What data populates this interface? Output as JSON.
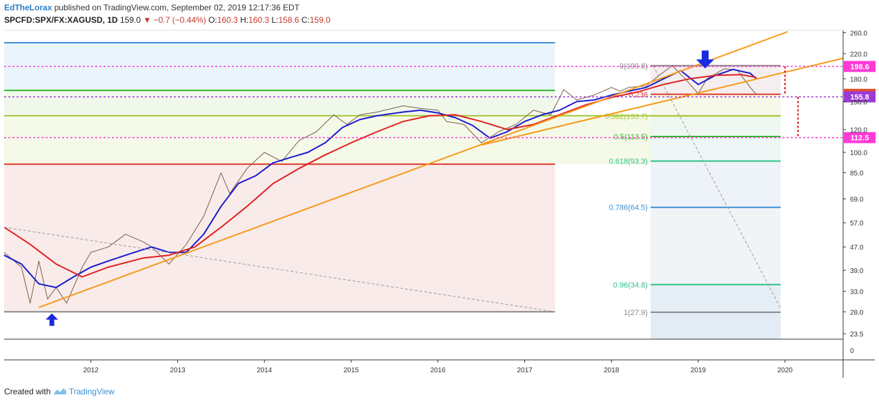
{
  "header": {
    "author": "EdTheLorax",
    "published_text": "published on TradingView.com, September 02, 2019 12:17:36 EDT"
  },
  "ticker": {
    "symbol": "SPCFD:SPX/FX:XAGUSD, 1D",
    "last": "159.0",
    "change": "▼ −0.7 (−0.44%)",
    "open_label": "O:",
    "open": "160.3",
    "high_label": "H:",
    "high": "160.3",
    "low_label": "L:",
    "low": "158.6",
    "close_label": "C:",
    "close": "159.0"
  },
  "footer": {
    "created_with": "Created with",
    "brand": "TradingView"
  },
  "chart_data": {
    "type": "line",
    "title": "",
    "xlabel": "",
    "ylabel": "",
    "scale": "log",
    "ylim": [
      22.5,
      265
    ],
    "xlim": [
      2011.0,
      2020.67
    ],
    "x_ticks": [
      2012,
      2013,
      2014,
      2015,
      2016,
      2017,
      2018,
      2019,
      2020
    ],
    "x_tick_labels": [
      "2012",
      "2013",
      "2014",
      "2015",
      "2016",
      "2017",
      "2018",
      "2019",
      "2020"
    ],
    "y_ticks": [
      260.0,
      220.0,
      180.0,
      150.0,
      120.0,
      100.0,
      85.0,
      69.0,
      57.0,
      47.0,
      39.0,
      33.0,
      28.0,
      23.5
    ],
    "y_tick_labels": [
      "260.0",
      "220.0",
      "180.0",
      "150.0",
      "120.0",
      "100.0",
      "85.0",
      "69.0",
      "57.0",
      "47.0",
      "39.0",
      "33.0",
      "28.0",
      "23.5"
    ],
    "y_zero_label": "0",
    "grid": false,
    "series": [
      {
        "color": "#7a5c48",
        "x": [
          2011.0,
          2011.2,
          2011.3,
          2011.4,
          2011.5,
          2011.6,
          2011.72,
          2011.9,
          2012.0,
          2012.2,
          2012.4,
          2012.6,
          2012.7,
          2012.9,
          2013.1,
          2013.3,
          2013.5,
          2013.6,
          2013.8,
          2014.0,
          2014.2,
          2014.4,
          2014.6,
          2014.8,
          2014.95,
          2015.1,
          2015.3,
          2015.6,
          2015.8,
          2016.0,
          2016.1,
          2016.3,
          2016.5,
          2016.7,
          2016.9,
          2017.1,
          2017.3,
          2017.45,
          2017.6,
          2017.8,
          2018.0,
          2018.1,
          2018.2,
          2018.4,
          2018.55,
          2018.7,
          2018.85,
          2019.0,
          2019.1,
          2019.3,
          2019.45,
          2019.6,
          2019.67
        ],
        "y": [
          45.0,
          40.0,
          30.0,
          42.0,
          31.0,
          34.0,
          30.0,
          40.0,
          45.0,
          47.0,
          52.0,
          49.0,
          47.0,
          41.0,
          48.0,
          60.0,
          85.0,
          72.0,
          88.0,
          100.0,
          93.0,
          110.0,
          118.0,
          135.0,
          125.0,
          135.0,
          138.0,
          145.0,
          142.0,
          140.0,
          128.0,
          125.0,
          108.0,
          118.0,
          125.0,
          140.0,
          135.0,
          165.0,
          152.0,
          158.0,
          168.0,
          163.0,
          168.0,
          170.0,
          185.0,
          200.0,
          180.0,
          160.0,
          180.0,
          195.0,
          193.0,
          168.0,
          159.0
        ]
      },
      {
        "color": "#1a1ad0",
        "x": [
          2011.0,
          2011.2,
          2011.4,
          2011.6,
          2011.8,
          2012.0,
          2012.2,
          2012.5,
          2012.7,
          2012.9,
          2013.1,
          2013.3,
          2013.5,
          2013.7,
          2013.9,
          2014.1,
          2014.3,
          2014.5,
          2014.7,
          2014.9,
          2015.1,
          2015.3,
          2015.6,
          2015.8,
          2016.0,
          2016.2,
          2016.4,
          2016.6,
          2016.8,
          2017.0,
          2017.2,
          2017.4,
          2017.6,
          2017.8,
          2018.0,
          2018.2,
          2018.4,
          2018.6,
          2018.8,
          2019.0,
          2019.2,
          2019.4,
          2019.6,
          2019.67
        ],
        "y": [
          44.0,
          41.0,
          35.0,
          34.0,
          37.0,
          40.0,
          42.0,
          45.0,
          47.0,
          45.0,
          45.0,
          52.0,
          65.0,
          78.0,
          83.0,
          92.0,
          96.0,
          100.0,
          108.0,
          122.0,
          130.0,
          134.0,
          138.0,
          140.0,
          137.0,
          132.0,
          124.0,
          112.0,
          118.0,
          128.0,
          135.0,
          140.0,
          150.0,
          152.0,
          158.0,
          163.0,
          168.0,
          180.0,
          192.0,
          172.0,
          185.0,
          194.0,
          188.0,
          180.0
        ]
      },
      {
        "color": "#e02020",
        "x": [
          2011.0,
          2011.3,
          2011.6,
          2011.9,
          2012.2,
          2012.6,
          2012.9,
          2013.2,
          2013.5,
          2013.8,
          2014.1,
          2014.4,
          2014.7,
          2015.0,
          2015.3,
          2015.6,
          2015.9,
          2016.2,
          2016.5,
          2016.8,
          2017.1,
          2017.4,
          2017.7,
          2018.0,
          2018.3,
          2018.6,
          2018.9,
          2019.2,
          2019.5,
          2019.67
        ],
        "y": [
          55.0,
          48.0,
          41.0,
          37.0,
          40.0,
          43.0,
          44.0,
          47.0,
          55.0,
          65.0,
          78.0,
          88.0,
          98.0,
          108.0,
          118.0,
          128.0,
          134.0,
          135.0,
          128.0,
          120.0,
          125.0,
          135.0,
          146.0,
          155.0,
          162.0,
          172.0,
          180.0,
          185.0,
          186.0,
          182.0
        ]
      },
      {
        "color": "#f59a1a",
        "x": [
          2011.4,
          2020.03
        ],
        "y": [
          29.0,
          262.0
        ]
      },
      {
        "color": "#f59a1a",
        "x": [
          2016.5,
          2020.67
        ],
        "y": [
          106.0,
          212.0
        ]
      },
      {
        "color": "#999999",
        "x": [
          2011.0,
          2017.35
        ],
        "y": [
          55.0,
          28.0
        ]
      },
      {
        "color": "#999999",
        "x": [
          2018.48,
          2019.95
        ],
        "y": [
          199.8,
          28.8
        ]
      }
    ],
    "horizontal_levels": [
      {
        "y": 240.0,
        "color": "#3a8fd4",
        "x_end": 2017.35
      },
      {
        "y": 164.0,
        "color": "#35b530",
        "x_end": 2017.35
      },
      {
        "y": 134.0,
        "color": "#a8c83a",
        "x_end": 2019.95
      },
      {
        "y": 91.0,
        "color": "#e03a2a",
        "x_end": 2017.35
      },
      {
        "y": 28.0,
        "color": "#888888",
        "x_end": 2017.35
      }
    ],
    "fib_levels": [
      {
        "label": "0(199.8)",
        "ratio": "0",
        "y": 199.8,
        "color": "#888888"
      },
      {
        "label": "0.236",
        "ratio": "0.236",
        "y": 159.0,
        "color": "#e03a2a"
      },
      {
        "label": "0.382(133.7)",
        "ratio": "0.382",
        "y": 133.7,
        "color": "#a8c83a"
      },
      {
        "label": "0.5(113.5)",
        "ratio": "0.5",
        "y": 113.5,
        "color": "#35b530"
      },
      {
        "label": "0.618(93.3)",
        "ratio": "0.618",
        "y": 93.3,
        "color": "#2fc08a"
      },
      {
        "label": "0.786(64.5)",
        "ratio": "0.786",
        "y": 64.5,
        "color": "#3a8fd4"
      },
      {
        "label": "0.96(34.8)",
        "ratio": "0.96",
        "y": 34.8,
        "color": "#2fc08a"
      },
      {
        "label": "1(27.9)",
        "ratio": "1",
        "y": 27.9,
        "color": "#888888"
      }
    ],
    "fib_x_range": [
      2018.45,
      2019.95
    ],
    "price_markers": [
      {
        "label": "198.6",
        "y": 198.6,
        "color": "#ff3ad6",
        "line": true
      },
      {
        "label": "159.0",
        "y": 159.0,
        "color": "#e05030",
        "line": false
      },
      {
        "label": "155.8",
        "y": 155.8,
        "color": "#9b3ad6",
        "line": true
      },
      {
        "label": "112.5",
        "y": 112.5,
        "color": "#ff3ad6",
        "line": true
      }
    ],
    "arrows": [
      {
        "direction": "up",
        "x": 2011.55,
        "y": 26.3,
        "color": "#1a2ae0"
      },
      {
        "direction": "down",
        "x": 2019.08,
        "y": 210.0,
        "color": "#1a2ae0"
      }
    ],
    "measure_brackets": [
      {
        "x": 2020.0,
        "y_from": 198.6,
        "y_to": 159.0,
        "color": "#e00000"
      },
      {
        "x": 2020.15,
        "y_from": 155.8,
        "y_to": 112.5,
        "color": "#e00000"
      }
    ]
  }
}
